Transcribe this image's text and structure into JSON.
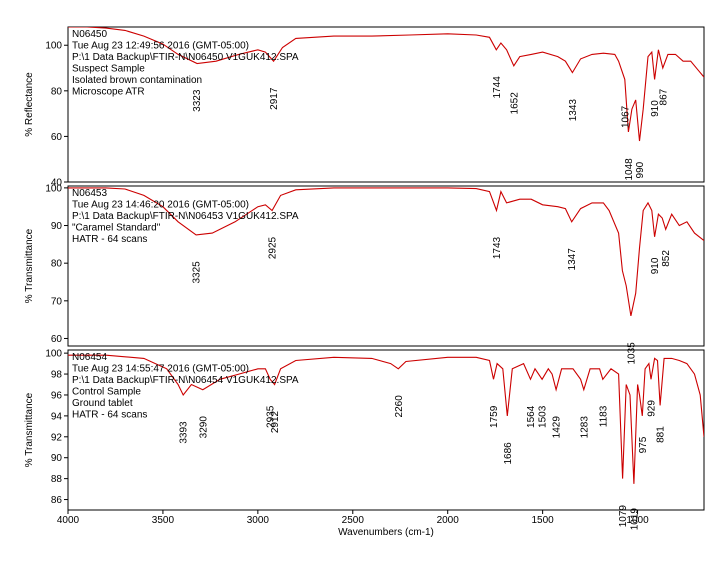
{
  "chart_data": {
    "type": "line",
    "x_axis": {
      "label": "Wavenumbers (cm-1)",
      "range": [
        4000,
        650
      ],
      "ticks": [
        4000,
        3500,
        3000,
        2500,
        2000,
        1500,
        1000
      ]
    },
    "line_color": "#cc0000",
    "panels": [
      {
        "id": "N06450",
        "ylabel": "% Reflectance",
        "ylim": [
          40,
          108
        ],
        "yticks": [
          40,
          60,
          80,
          100
        ],
        "info": [
          "N06450",
          "Tue Aug 23 12:49:56 2016 (GMT-05:00)",
          "P:\\1 Data Backup\\FTIR-N\\N06450 V1GUK412.SPA",
          "Suspect Sample",
          "Isolated brown contamination",
          "Microscope ATR"
        ],
        "series": {
          "x": [
            4000,
            3900,
            3800,
            3700,
            3600,
            3500,
            3420,
            3320,
            3220,
            3100,
            3000,
            2960,
            2917,
            2870,
            2800,
            2600,
            2400,
            2200,
            2000,
            1850,
            1780,
            1744,
            1720,
            1690,
            1652,
            1620,
            1560,
            1500,
            1420,
            1380,
            1343,
            1300,
            1240,
            1180,
            1120,
            1100,
            1067,
            1048,
            1030,
            1010,
            990,
            970,
            945,
            925,
            910,
            890,
            867,
            840,
            800,
            760,
            720,
            680,
            650
          ],
          "y": [
            108,
            108,
            107.5,
            106.5,
            104,
            100.5,
            96,
            92,
            93,
            96,
            98,
            97,
            93,
            99,
            103,
            104,
            104,
            104.5,
            105,
            104.5,
            103.5,
            98,
            101,
            98,
            91,
            95,
            96,
            97,
            95,
            93,
            88,
            94,
            96,
            96.5,
            96,
            93,
            85,
            62,
            72,
            76,
            58,
            72,
            95,
            97,
            85,
            98,
            90,
            96,
            96,
            93,
            93,
            89,
            86
          ]
        },
        "peaks": [
          {
            "label": "3323",
            "x": 3323
          },
          {
            "label": "2917",
            "x": 2917
          },
          {
            "label": "1744",
            "x": 1744
          },
          {
            "label": "1652",
            "x": 1652
          },
          {
            "label": "1343",
            "x": 1343
          },
          {
            "label": "1067",
            "x": 1067
          },
          {
            "label": "1048",
            "x": 1048
          },
          {
            "label": "990",
            "x": 990
          },
          {
            "label": "910",
            "x": 910
          },
          {
            "label": "867",
            "x": 867
          }
        ]
      },
      {
        "id": "N06453",
        "ylabel": "% Transmittance",
        "ylim": [
          58,
          100.5
        ],
        "yticks": [
          60,
          70,
          80,
          90,
          100
        ],
        "info": [
          "N06453",
          "Tue Aug 23 14:46:20 2016 (GMT-05:00)",
          "P:\\1 Data Backup\\FTIR-N\\N06453 V1GUK412.SPA",
          "\"Caramel Standard\"",
          "HATR - 64 scans"
        ],
        "series": {
          "x": [
            4000,
            3800,
            3700,
            3600,
            3500,
            3420,
            3325,
            3240,
            3120,
            3000,
            2960,
            2925,
            2880,
            2800,
            2600,
            2400,
            2200,
            2000,
            1850,
            1780,
            1743,
            1720,
            1690,
            1620,
            1560,
            1500,
            1420,
            1380,
            1347,
            1300,
            1240,
            1180,
            1150,
            1100,
            1080,
            1060,
            1035,
            1010,
            990,
            970,
            945,
            925,
            910,
            890,
            870,
            852,
            820,
            780,
            740,
            700,
            650
          ],
          "y": [
            100,
            100,
            99.7,
            98,
            95,
            91,
            87.5,
            88,
            91,
            95,
            95.5,
            94,
            98,
            99.5,
            100,
            100,
            100,
            100,
            99.8,
            99,
            94,
            99,
            96,
            97,
            97,
            95.5,
            95,
            94.5,
            91,
            94.5,
            96,
            96,
            94,
            88,
            78,
            74,
            66,
            72,
            84,
            94,
            96,
            94,
            87,
            93,
            92,
            89,
            93,
            90,
            91,
            88,
            86
          ]
        },
        "peaks": [
          {
            "label": "3325",
            "x": 3325
          },
          {
            "label": "2925",
            "x": 2925
          },
          {
            "label": "1743",
            "x": 1743
          },
          {
            "label": "1347",
            "x": 1347
          },
          {
            "label": "1035",
            "x": 1035
          },
          {
            "label": "910",
            "x": 910
          },
          {
            "label": "852",
            "x": 852
          }
        ]
      },
      {
        "id": "N06454",
        "ylabel": "% Transmittance",
        "ylim": [
          85,
          100.3
        ],
        "yticks": [
          86,
          88,
          90,
          92,
          94,
          96,
          98,
          100
        ],
        "info": [
          "N06454",
          "Tue Aug 23 14:55:47 2016 (GMT-05:00)",
          "P:\\1 Data Backup\\FTIR-N\\N06454 V1GUK412.SPA",
          "Control Sample",
          "Ground tablet",
          "HATR - 64 scans"
        ],
        "series": {
          "x": [
            4000,
            3800,
            3600,
            3480,
            3420,
            3393,
            3350,
            3290,
            3200,
            3100,
            3000,
            2960,
            2935,
            2912,
            2880,
            2800,
            2600,
            2400,
            2300,
            2260,
            2220,
            2000,
            1850,
            1780,
            1759,
            1740,
            1710,
            1686,
            1660,
            1600,
            1564,
            1540,
            1503,
            1470,
            1450,
            1429,
            1400,
            1340,
            1300,
            1283,
            1250,
            1200,
            1183,
            1140,
            1100,
            1079,
            1060,
            1040,
            1019,
            1000,
            990,
            975,
            960,
            940,
            929,
            910,
            895,
            881,
            860,
            820,
            780,
            740,
            700,
            670,
            650
          ],
          "y": [
            99.8,
            99.8,
            99.5,
            98.5,
            97,
            96,
            97,
            96.5,
            97.5,
            98,
            98.5,
            98.5,
            97.5,
            97,
            98.5,
            99.3,
            99.6,
            99.5,
            99,
            98.5,
            99.2,
            99.6,
            99.6,
            99.3,
            97.5,
            99,
            98.5,
            94,
            98.5,
            99,
            97.5,
            98.5,
            97.5,
            98.5,
            98,
            96.5,
            98.5,
            98.5,
            97.5,
            96.5,
            98.5,
            98.5,
            97.5,
            98.5,
            98,
            88,
            97,
            96,
            87.5,
            97,
            96,
            94,
            98.5,
            99,
            97.5,
            99.5,
            99.3,
            95,
            99.5,
            99.5,
            99.3,
            99,
            98,
            96,
            92
          ]
        },
        "peaks": [
          {
            "label": "3393",
            "x": 3393
          },
          {
            "label": "3290",
            "x": 3290
          },
          {
            "label": "2935",
            "x": 2935
          },
          {
            "label": "2912",
            "x": 2912
          },
          {
            "label": "2260",
            "x": 2260
          },
          {
            "label": "1759",
            "x": 1759
          },
          {
            "label": "1686",
            "x": 1686
          },
          {
            "label": "1564",
            "x": 1564
          },
          {
            "label": "1503",
            "x": 1503
          },
          {
            "label": "1429",
            "x": 1429
          },
          {
            "label": "1283",
            "x": 1283
          },
          {
            "label": "1183",
            "x": 1183
          },
          {
            "label": "1079",
            "x": 1079
          },
          {
            "label": "1019",
            "x": 1019
          },
          {
            "label": "975",
            "x": 975
          },
          {
            "label": "929",
            "x": 929
          },
          {
            "label": "881",
            "x": 881
          }
        ]
      }
    ]
  }
}
